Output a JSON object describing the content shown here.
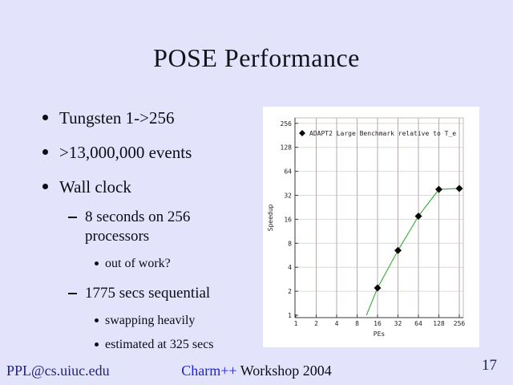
{
  "slide": {
    "title": "POSE Performance",
    "bullets": [
      {
        "level": 1,
        "text": "Tungsten 1->256"
      },
      {
        "level": 1,
        "text": ">13,000,000 events"
      },
      {
        "level": 1,
        "text": "Wall clock"
      },
      {
        "level": 2,
        "text": "8 seconds on 256 processors"
      },
      {
        "level": 3,
        "text": "out of work?"
      },
      {
        "level": 2,
        "text": "1775 secs sequential"
      },
      {
        "level": 3,
        "text": "swapping heavily"
      },
      {
        "level": 3,
        "text": "estimated at 325 secs"
      }
    ],
    "footer": {
      "left": "PPL@cs.uiuc.edu",
      "center_link": "Charm++",
      "center_rest": " Workshop 2004",
      "page": "17"
    }
  },
  "colors": {
    "background": "#e3e3fb",
    "panel": "#ffffff",
    "title_text": "#14141c",
    "body_text": "#0c0c14",
    "footer_navy": "#22227a",
    "link_blue": "#2222cc",
    "page_number": "#1c2450",
    "chart_line": "#3fb23f",
    "chart_marker": "#0a0a0a",
    "grid_vertical": "#b9aaaa",
    "grid_horizontal": "#e8d6d6",
    "frame_light": "#c7bbb3",
    "axis_dark": "#3a3a3a",
    "chart_text": "#222222"
  },
  "chart_data": {
    "type": "line",
    "legend": "ADAPT2 Large Benchmark relative to T_e",
    "legend_marker": "diamond-icon",
    "legend_position": "top-left-inside",
    "xlabel": "PEs",
    "ylabel": "Speedup",
    "x_scale": "log2",
    "y_scale": "log2",
    "xlim": [
      1,
      256
    ],
    "ylim": [
      1,
      256
    ],
    "x_ticks": [
      1,
      2,
      4,
      8,
      16,
      32,
      64,
      128,
      256
    ],
    "y_ticks": [
      1,
      2,
      4,
      8,
      16,
      32,
      64,
      128,
      256
    ],
    "grid": true,
    "series": [
      {
        "name": "ADAPT2 Large Benchmark relative to T_e",
        "marker": "diamond",
        "points": [
          [
            16,
            2.2
          ],
          [
            32,
            6.5
          ],
          [
            64,
            17.5
          ],
          [
            128,
            38
          ],
          [
            256,
            39
          ]
        ],
        "line_entry": [
          11,
          1
        ]
      }
    ]
  }
}
